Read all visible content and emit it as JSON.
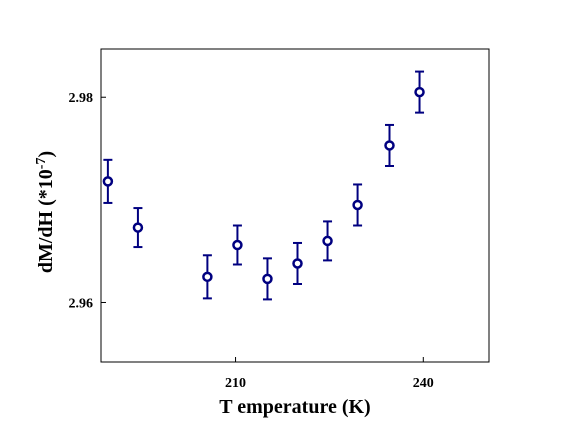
{
  "chart_data": {
    "type": "scatter",
    "xlabel": "T emperature (K)",
    "ylabel_main": "dM/dH (*10",
    "ylabel_exp": "-7",
    "ylabel_close": ")",
    "xlim": [
      188.5,
      250.5
    ],
    "ylim": [
      2.9542,
      2.9847
    ],
    "xticks": [
      210,
      240
    ],
    "xtick_labels": [
      "210",
      "240"
    ],
    "yticks": [
      2.96,
      2.98
    ],
    "ytick_labels": [
      "2.96",
      "2.98"
    ],
    "grid": false,
    "legend": "none",
    "marker": "open-circle",
    "series": [
      {
        "color": "#000080",
        "points": [
          {
            "x": 189.6,
            "y": 2.9718,
            "err": 0.0021
          },
          {
            "x": 194.4,
            "y": 2.9673,
            "err": 0.0019
          },
          {
            "x": 205.5,
            "y": 2.9625,
            "err": 0.0021
          },
          {
            "x": 210.3,
            "y": 2.9656,
            "err": 0.0019
          },
          {
            "x": 215.1,
            "y": 2.9623,
            "err": 0.002
          },
          {
            "x": 219.9,
            "y": 2.9638,
            "err": 0.002
          },
          {
            "x": 224.7,
            "y": 2.966,
            "err": 0.0019
          },
          {
            "x": 229.5,
            "y": 2.9695,
            "err": 0.002
          },
          {
            "x": 234.6,
            "y": 2.9753,
            "err": 0.002
          },
          {
            "x": 239.4,
            "y": 2.9805,
            "err": 0.002
          }
        ]
      }
    ]
  }
}
